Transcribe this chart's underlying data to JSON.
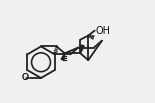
{
  "bg_color": "#f0f0f0",
  "bond_color": "#222222",
  "bond_lw": 1.3,
  "text_color": "#111111",
  "oh_label": "OH",
  "meo_label": "O",
  "figsize": [
    1.55,
    1.03
  ],
  "dpi": 100
}
